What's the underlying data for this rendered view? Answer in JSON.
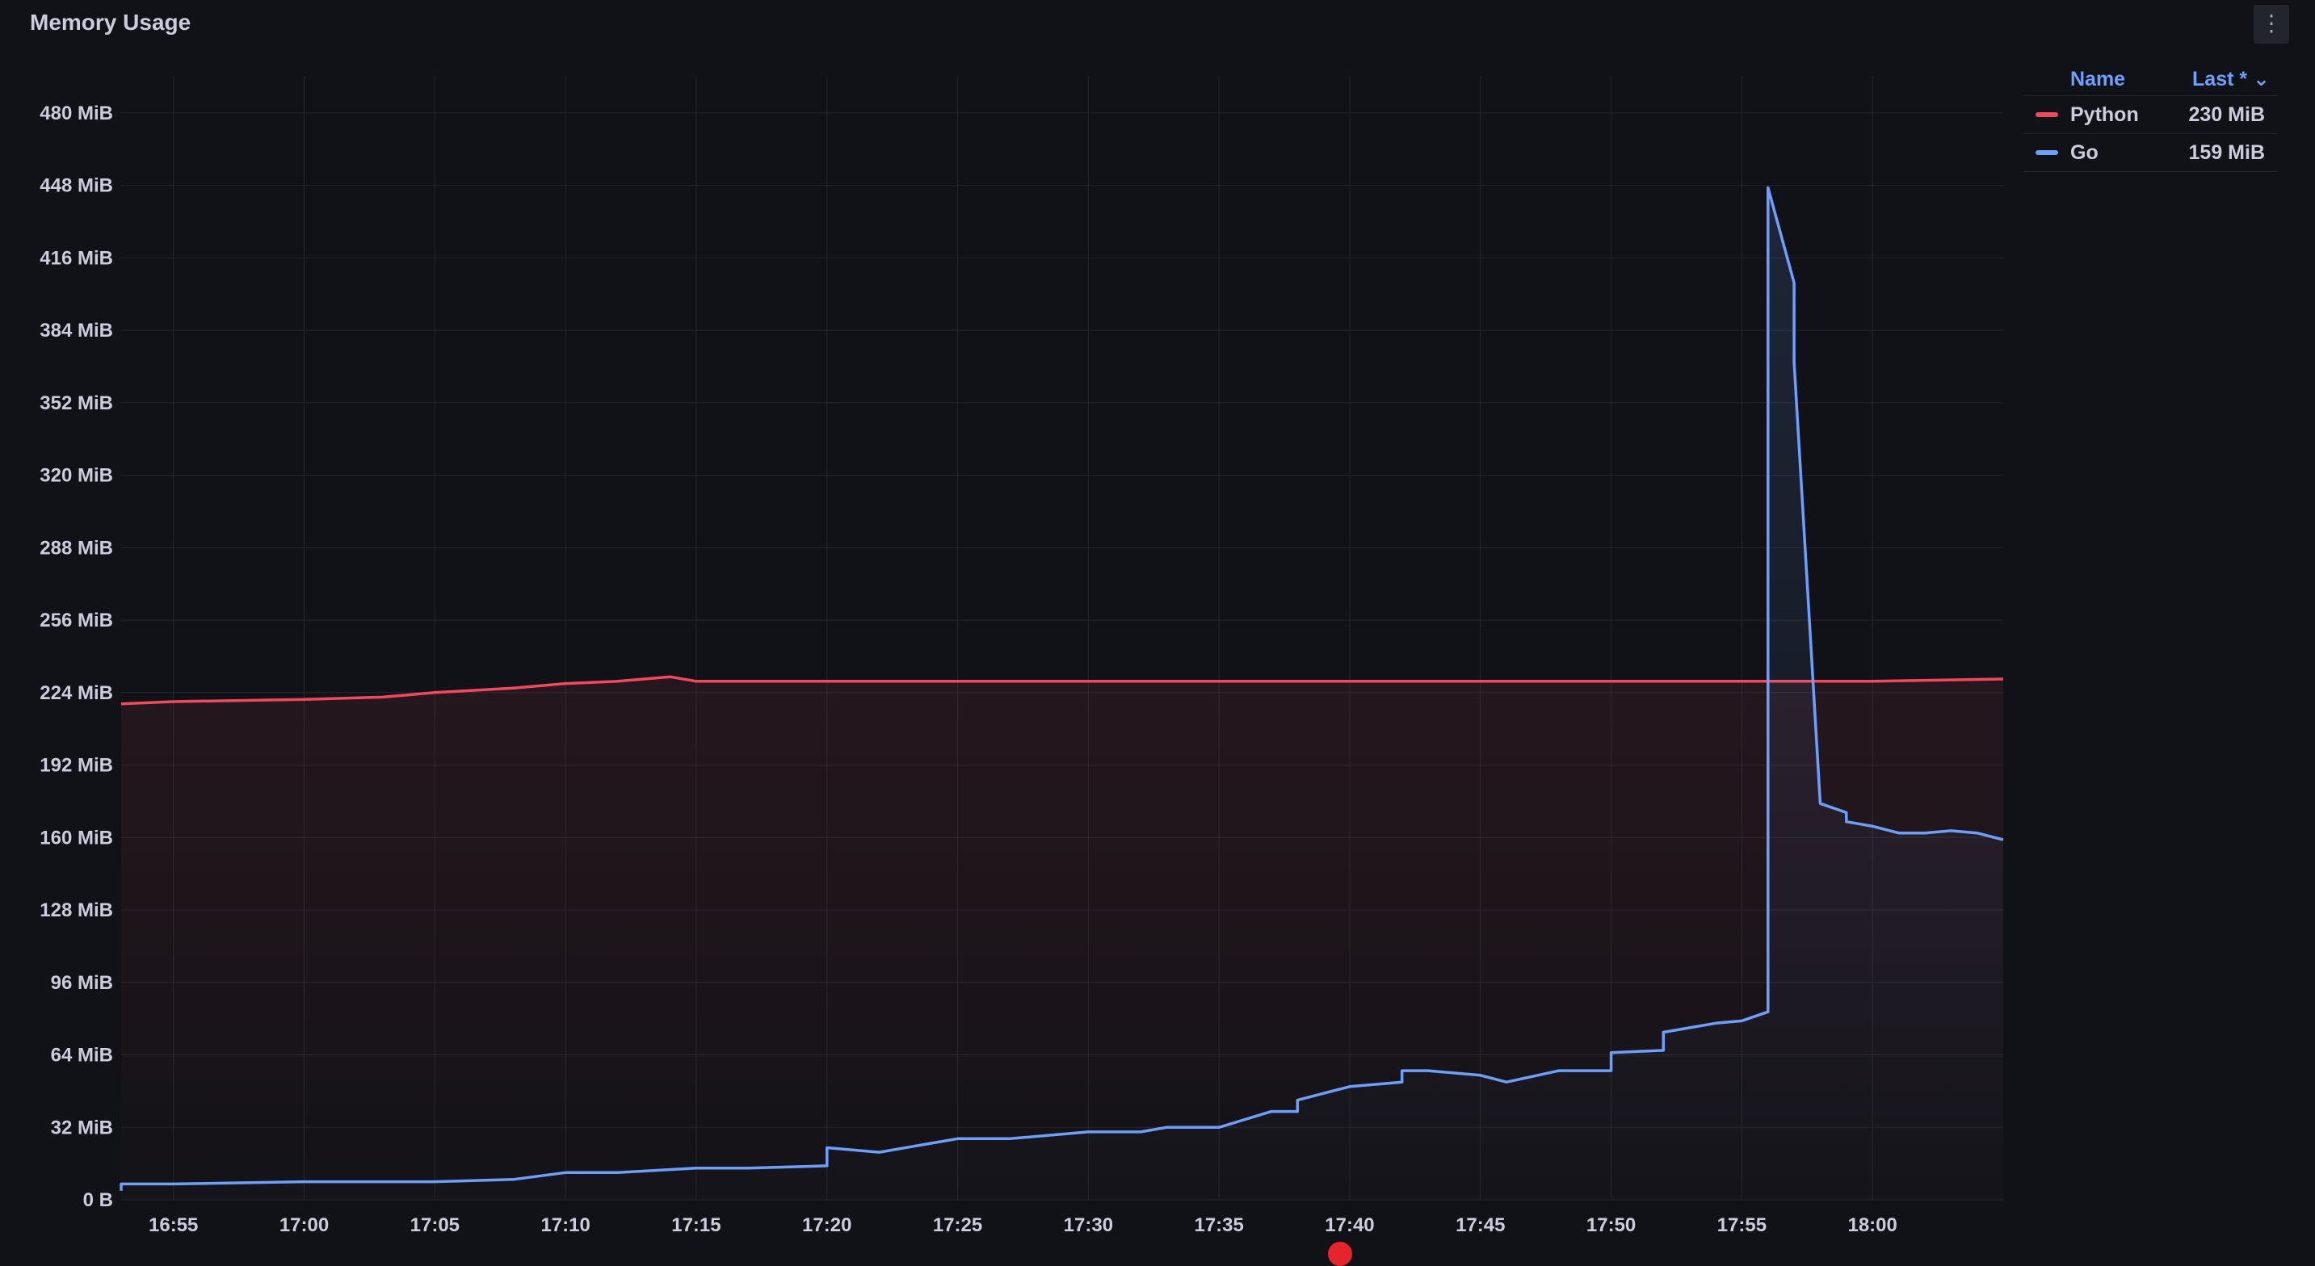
{
  "panel": {
    "title": "Memory Usage",
    "menu_icon": "kebab-menu-icon"
  },
  "legend": {
    "header_name": "Name",
    "header_last": "Last * ⌄",
    "items": [
      {
        "name": "Python",
        "last": "230 MiB",
        "color": "#f2495c"
      },
      {
        "name": "Go",
        "last": "159 MiB",
        "color": "#6e9fff"
      }
    ]
  },
  "chart_data": {
    "type": "line",
    "title": "Memory Usage",
    "xlabel": "",
    "ylabel": "",
    "grid": true,
    "legend_position": "top-right",
    "ylim": [
      0,
      496
    ],
    "y_unit": "MiB",
    "y_ticks": [
      0,
      32,
      64,
      96,
      128,
      160,
      192,
      224,
      256,
      288,
      320,
      352,
      384,
      416,
      448,
      480
    ],
    "y_tick_labels": [
      "0 B",
      "32 MiB",
      "64 MiB",
      "96 MiB",
      "128 MiB",
      "160 MiB",
      "192 MiB",
      "224 MiB",
      "256 MiB",
      "288 MiB",
      "320 MiB",
      "352 MiB",
      "384 MiB",
      "416 MiB",
      "448 MiB",
      "480 MiB"
    ],
    "x_ticks": [
      "16:55",
      "17:00",
      "17:05",
      "17:10",
      "17:15",
      "17:20",
      "17:25",
      "17:30",
      "17:35",
      "17:40",
      "17:45",
      "17:50",
      "17:55",
      "18:00"
    ],
    "xlim": [
      "16:53",
      "18:05"
    ],
    "series": [
      {
        "name": "Python",
        "color": "#f2495c",
        "x": [
          "16:53",
          "16:55",
          "17:00",
          "17:03",
          "17:05",
          "17:08",
          "17:10",
          "17:12",
          "17:13",
          "17:14",
          "17:15",
          "17:20",
          "17:30",
          "17:40",
          "17:50",
          "17:55",
          "18:00",
          "18:05"
        ],
        "y": [
          219,
          220,
          221,
          222,
          224,
          226,
          228,
          229,
          230,
          231,
          229,
          229,
          229,
          229,
          229,
          229,
          229,
          230
        ]
      },
      {
        "name": "Go",
        "color": "#6e9fff",
        "x": [
          "16:53",
          "16:53",
          "16:55",
          "17:00",
          "17:05",
          "17:08",
          "17:10",
          "17:12",
          "17:15",
          "17:17",
          "17:20",
          "17:20",
          "17:22",
          "17:25",
          "17:27",
          "17:30",
          "17:32",
          "17:33",
          "17:35",
          "17:37",
          "17:38",
          "17:38",
          "17:40",
          "17:42",
          "17:42",
          "17:43",
          "17:45",
          "17:46",
          "17:48",
          "17:50",
          "17:50",
          "17:52",
          "17:52",
          "17:54",
          "17:55",
          "17:56",
          "17:56",
          "17:56",
          "17:57",
          "17:57",
          "17:57",
          "17:58",
          "17:58",
          "17:59",
          "17:59",
          "18:00",
          "18:01",
          "18:02",
          "18:03",
          "18:04",
          "18:05"
        ],
        "y": [
          4,
          7,
          7,
          8,
          8,
          9,
          12,
          12,
          14,
          14,
          15,
          23,
          21,
          27,
          27,
          30,
          30,
          32,
          32,
          39,
          39,
          44,
          50,
          52,
          57,
          57,
          55,
          52,
          57,
          57,
          65,
          66,
          74,
          78,
          79,
          83,
          83,
          447,
          405,
          398,
          370,
          175,
          175,
          171,
          167,
          165,
          162,
          162,
          163,
          162,
          159
        ]
      }
    ]
  }
}
